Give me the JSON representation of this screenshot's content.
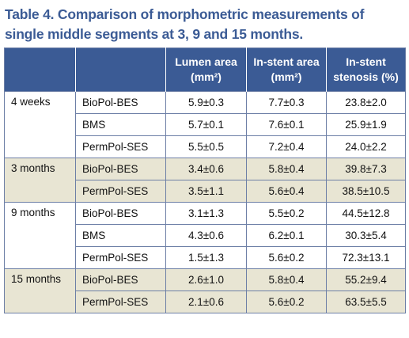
{
  "caption": "Table 4. Comparison of morphometric measurements of single middle segments at 3, 9 and 15 months.",
  "headers": {
    "group": "",
    "stent": "",
    "lumen_area": "Lumen area (mm²)",
    "instent_area": "In-stent area (mm²)",
    "instent_stenosis": "In-stent stenosis (%)"
  },
  "groups": [
    {
      "label": "4 weeks",
      "shade": false,
      "rows": [
        {
          "stent": "BioPol-BES",
          "lumen": "5.9±0.3",
          "area": "7.7±0.3",
          "stenosis": "23.8±2.0"
        },
        {
          "stent": "BMS",
          "lumen": "5.7±0.1",
          "area": "7.6±0.1",
          "stenosis": "25.9±1.9"
        },
        {
          "stent": "PermPol-SES",
          "lumen": "5.5±0.5",
          "area": "7.2±0.4",
          "stenosis": "24.0±2.2"
        }
      ]
    },
    {
      "label": "3 months",
      "shade": true,
      "rows": [
        {
          "stent": "BioPol-BES",
          "lumen": "3.4±0.6",
          "area": "5.8±0.4",
          "stenosis": "39.8±7.3"
        },
        {
          "stent": "PermPol-SES",
          "lumen": "3.5±1.1",
          "area": "5.6±0.4",
          "stenosis": "38.5±10.5"
        }
      ]
    },
    {
      "label": "9 months",
      "shade": false,
      "rows": [
        {
          "stent": "BioPol-BES",
          "lumen": "3.1±1.3",
          "area": "5.5±0.2",
          "stenosis": "44.5±12.8"
        },
        {
          "stent": "BMS",
          "lumen": "4.3±0.6",
          "area": "6.2±0.1",
          "stenosis": "30.3±5.4"
        },
        {
          "stent": "PermPol-SES",
          "lumen": "1.5±1.3",
          "area": "5.6±0.2",
          "stenosis": "72.3±13.1"
        }
      ]
    },
    {
      "label": "15 months",
      "shade": true,
      "rows": [
        {
          "stent": "BioPol-BES",
          "lumen": "2.6±1.0",
          "area": "5.8±0.4",
          "stenosis": "55.2±9.4"
        },
        {
          "stent": "PermPol-SES",
          "lumen": "2.1±0.6",
          "area": "5.6±0.2",
          "stenosis": "63.5±5.5"
        }
      ]
    }
  ],
  "colors": {
    "header_bg": "#3b5b95",
    "caption_text": "#3b5b95",
    "shade_row": "#e8e5d3",
    "border": "#6d7fa6"
  }
}
